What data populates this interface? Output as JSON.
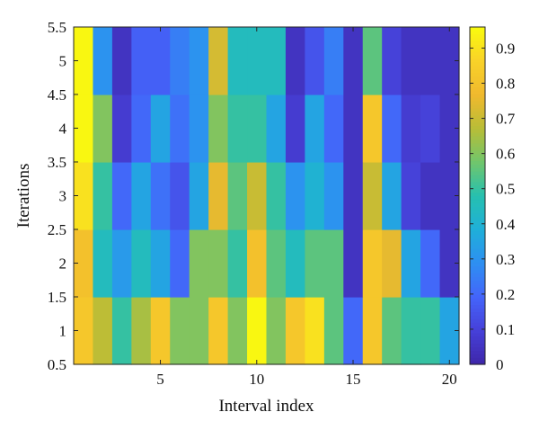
{
  "chart_data": {
    "type": "heatmap",
    "title": "",
    "xlabel": "Interval index",
    "ylabel": "Iterations",
    "x": [
      1,
      2,
      3,
      4,
      5,
      6,
      7,
      8,
      9,
      10,
      11,
      12,
      13,
      14,
      15,
      16,
      17,
      18,
      19,
      20
    ],
    "y": [
      1,
      2,
      3,
      4,
      5
    ],
    "xlim": [
      0.5,
      20.5
    ],
    "ylim": [
      0.5,
      5.5
    ],
    "x_ticks": [
      5,
      10,
      15,
      20
    ],
    "y_ticks": [
      0.5,
      1,
      1.5,
      2,
      2.5,
      3,
      3.5,
      4,
      4.5,
      5,
      5.5
    ],
    "colormap": "parula",
    "clim": [
      0,
      0.96
    ],
    "colorbar_ticks": [
      0,
      0.1,
      0.2,
      0.3,
      0.4,
      0.5,
      0.6,
      0.7,
      0.8,
      0.9
    ],
    "grid": false,
    "values": [
      [
        0.82,
        0.68,
        0.5,
        0.65,
        0.82,
        0.6,
        0.6,
        0.82,
        0.6,
        0.95,
        0.6,
        0.82,
        0.9,
        0.55,
        0.2,
        0.82,
        0.55,
        0.5,
        0.5,
        0.35
      ],
      [
        0.8,
        0.45,
        0.32,
        0.45,
        0.35,
        0.2,
        0.6,
        0.6,
        0.5,
        0.8,
        0.55,
        0.45,
        0.55,
        0.55,
        0.05,
        0.82,
        0.75,
        0.35,
        0.2,
        0.05
      ],
      [
        0.9,
        0.5,
        0.2,
        0.35,
        0.22,
        0.15,
        0.35,
        0.75,
        0.55,
        0.7,
        0.5,
        0.3,
        0.4,
        0.3,
        0.05,
        0.7,
        0.35,
        0.1,
        0.05,
        0.05
      ],
      [
        0.95,
        0.6,
        0.08,
        0.2,
        0.35,
        0.22,
        0.3,
        0.6,
        0.5,
        0.5,
        0.35,
        0.08,
        0.35,
        0.2,
        0.05,
        0.82,
        0.2,
        0.08,
        0.1,
        0.05
      ],
      [
        0.95,
        0.3,
        0.05,
        0.18,
        0.18,
        0.25,
        0.3,
        0.72,
        0.45,
        0.45,
        0.45,
        0.05,
        0.15,
        0.25,
        0.05,
        0.55,
        0.1,
        0.05,
        0.05,
        0.05
      ]
    ]
  }
}
